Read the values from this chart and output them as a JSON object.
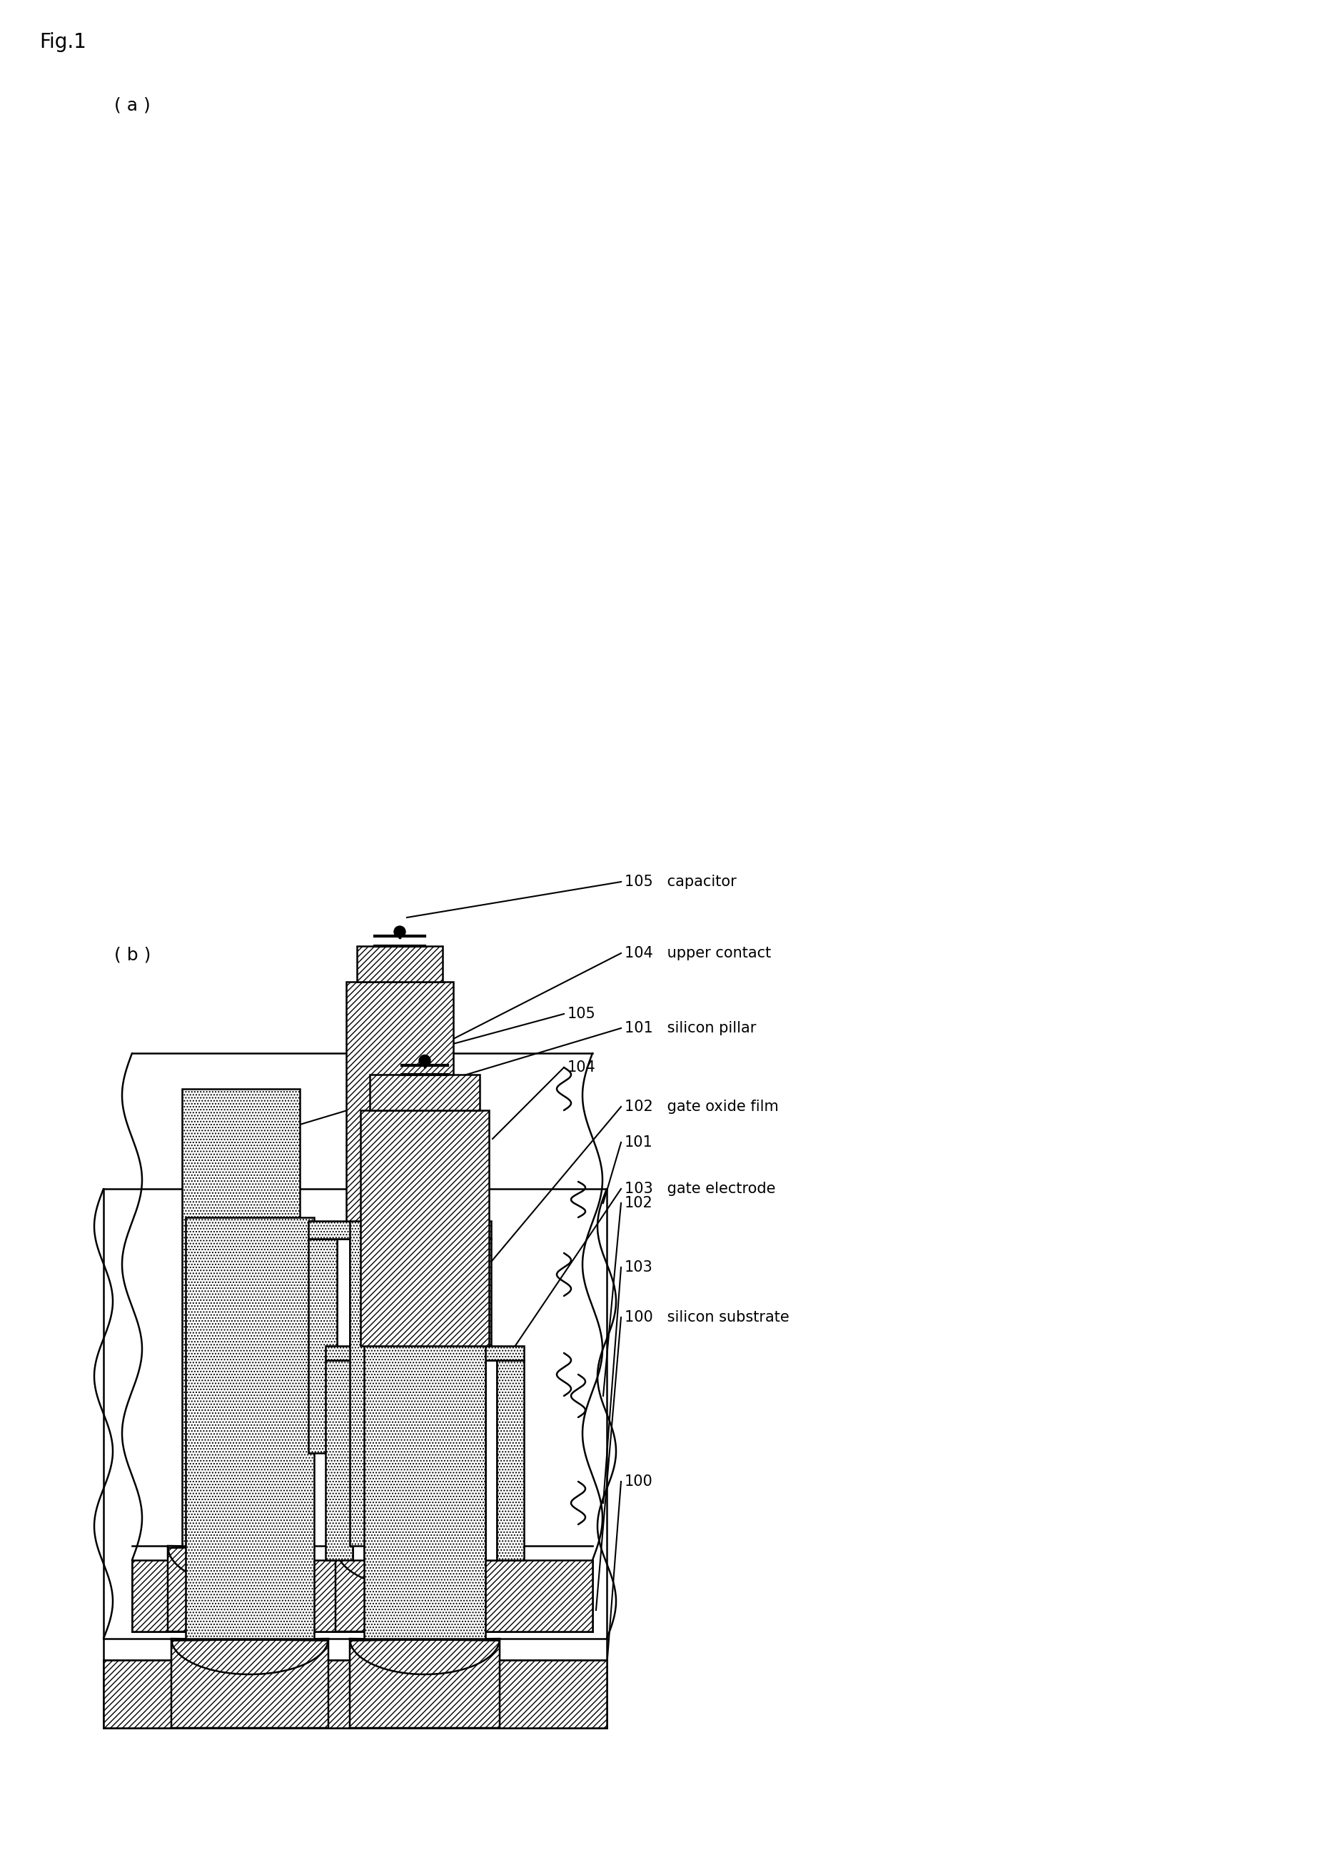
{
  "fig_label": "Fig.1",
  "sub_a_label": "( a )",
  "sub_b_label": "( b )",
  "label_100": "100   silicon substrate",
  "label_101": "101   silicon pillar",
  "label_102": "102   gate oxide film",
  "label_103": "103   gate electrode",
  "label_104": "104   upper contact",
  "label_105": "105   capacitor",
  "label_100b": "100",
  "label_101b": "101",
  "label_102b": "102",
  "label_103b": "103",
  "label_104b": "104",
  "label_105b": "105",
  "bg_color": "#ffffff",
  "lw": 1.8,
  "fontsize_label": 15,
  "fontsize_sub": 18,
  "fontsize_fig": 20
}
